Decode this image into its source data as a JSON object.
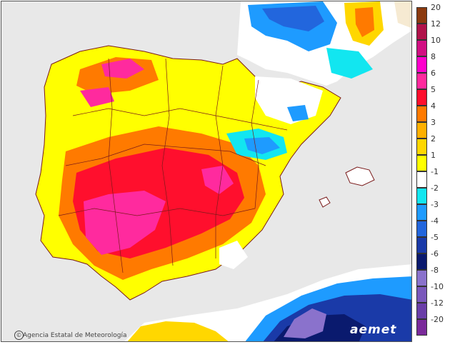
{
  "credit": {
    "symbol": "©",
    "text": "Agencia Estatal de Meteorología"
  },
  "logo": {
    "text": "aemet"
  },
  "legend": {
    "items": [
      {
        "label": "20",
        "color": "#8b3a0e"
      },
      {
        "label": "12",
        "color": "#b0124a"
      },
      {
        "label": "10",
        "color": "#d10f82"
      },
      {
        "label": "8",
        "color": "#ff00cc"
      },
      {
        "label": "6",
        "color": "#ff2a9e"
      },
      {
        "label": "5",
        "color": "#ff0f2d"
      },
      {
        "label": "4",
        "color": "#ff7a00"
      },
      {
        "label": "3",
        "color": "#ffb000"
      },
      {
        "label": "2",
        "color": "#ffd700"
      },
      {
        "label": "1",
        "color": "#ffff00"
      },
      {
        "label": "-1",
        "color": "#ffffff"
      },
      {
        "label": "-2",
        "color": "#12e6f0"
      },
      {
        "label": "-3",
        "color": "#1e9bff"
      },
      {
        "label": "-4",
        "color": "#2266dd"
      },
      {
        "label": "-5",
        "color": "#1a3aa8"
      },
      {
        "label": "-6",
        "color": "#0a1a6e"
      },
      {
        "label": "-8",
        "color": "#8a72cc"
      },
      {
        "label": "-10",
        "color": "#7a58bb"
      },
      {
        "label": "-12",
        "color": "#6a3ea8"
      },
      {
        "label": "-20",
        "color": "#7a2a9a"
      }
    ]
  }
}
